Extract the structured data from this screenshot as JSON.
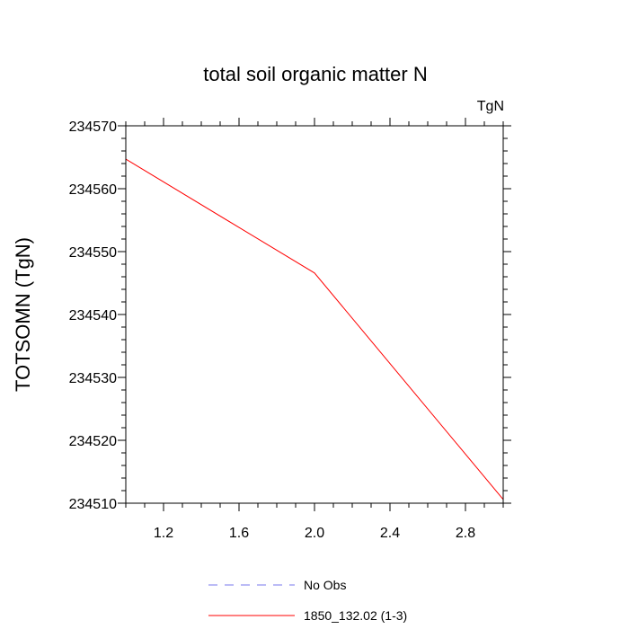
{
  "chart_data": {
    "type": "line",
    "title": "total soil organic matter N",
    "units_label": "TgN",
    "xlabel": "",
    "ylabel": "TOTSOMN  (TgN)",
    "xlim": [
      1.0,
      3.0
    ],
    "ylim": [
      234510,
      234570
    ],
    "x_ticks": [
      1.2,
      1.6,
      2.0,
      2.4,
      2.8
    ],
    "x_tick_labels": [
      "1.2",
      "1.6",
      "2.0",
      "2.4",
      "2.8"
    ],
    "y_ticks": [
      234510,
      234520,
      234530,
      234540,
      234550,
      234560,
      234570
    ],
    "y_tick_labels": [
      "234510",
      "234520",
      "234530",
      "234540",
      "234550",
      "234560",
      "234570"
    ],
    "grid": false,
    "legend_position": "bottom",
    "series": [
      {
        "name": "No Obs",
        "color": "#7777ee",
        "style": "dashed",
        "x": [],
        "y": []
      },
      {
        "name": "1850_132.02 (1-3)",
        "color": "#ff0000",
        "style": "solid",
        "x": [
          1,
          2,
          3
        ],
        "y": [
          234564.7,
          234546.6,
          234510.6
        ]
      }
    ]
  }
}
